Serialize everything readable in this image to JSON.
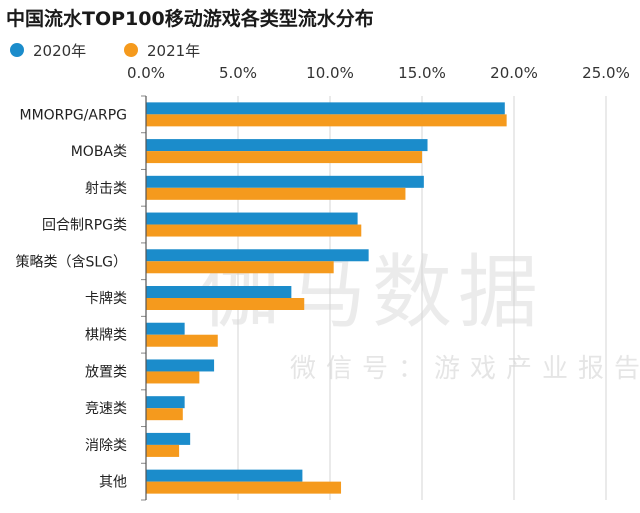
{
  "watermark": {
    "main": "伽马数据",
    "sub": "微信号：游戏产业报告"
  },
  "chart_data": {
    "type": "bar",
    "orientation": "horizontal",
    "title": "中国流水TOP100移动游戏各类型流水分布",
    "xlim": [
      0,
      25
    ],
    "x_ticks": [
      "0.0%",
      "5.0%",
      "10.0%",
      "15.0%",
      "20.0%",
      "25.0%"
    ],
    "x_tick_values": [
      0,
      5,
      10,
      15,
      20,
      25
    ],
    "grid": true,
    "legend_position": "top-left",
    "categories": [
      "MMORPG/ARPG",
      "MOBA类",
      "射击类",
      "回合制RPG类",
      "策略类（含SLG）",
      "卡牌类",
      "棋牌类",
      "放置类",
      "竞速类",
      "消除类",
      "其他"
    ],
    "series": [
      {
        "name": "2020年",
        "color": "#1b8ccb",
        "values": [
          19.5,
          15.3,
          15.1,
          11.5,
          12.1,
          7.9,
          2.1,
          3.7,
          2.1,
          2.4,
          8.5
        ]
      },
      {
        "name": "2021年",
        "color": "#f59a1d",
        "values": [
          19.6,
          15.0,
          14.1,
          11.7,
          10.2,
          8.6,
          3.9,
          2.9,
          2.0,
          1.8,
          10.6
        ]
      }
    ]
  }
}
